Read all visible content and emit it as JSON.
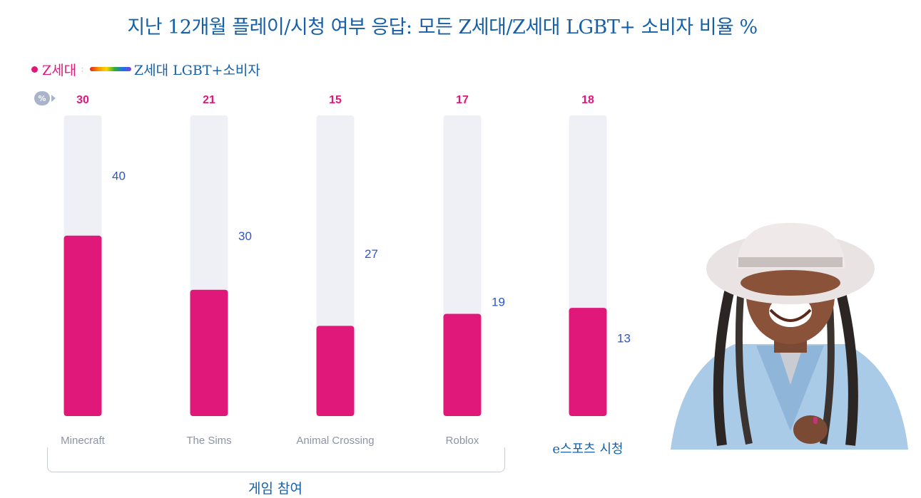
{
  "title": "지난 12개월 플레이/시청 여부 응답: 모든 Z세대/Z세대 LGBT+ 소비자 비율 %",
  "legend": {
    "gen_z": "Z세대",
    "separator": ":",
    "lgbt": "Z세대 LGBT+소비자"
  },
  "percent_badge": "%",
  "group_label": "게임 참여",
  "colors": {
    "gen_z": "#e0187a",
    "track": "#eef0f5",
    "title_blue": "#1560a8",
    "label_gray": "#8c93a4",
    "lgbt_value": "#2f55c6"
  },
  "chart_data": {
    "type": "bar",
    "categories": [
      "Minecraft",
      "The Sims",
      "Animal Crossing",
      "Roblox",
      "e스포츠 시청"
    ],
    "series": [
      {
        "name": "Z세대",
        "values": [
          30,
          21,
          15,
          17,
          18
        ]
      },
      {
        "name": "Z세대 LGBT+소비자",
        "values": [
          40,
          30,
          27,
          19,
          13
        ]
      }
    ],
    "ylim": [
      0,
      50
    ]
  }
}
